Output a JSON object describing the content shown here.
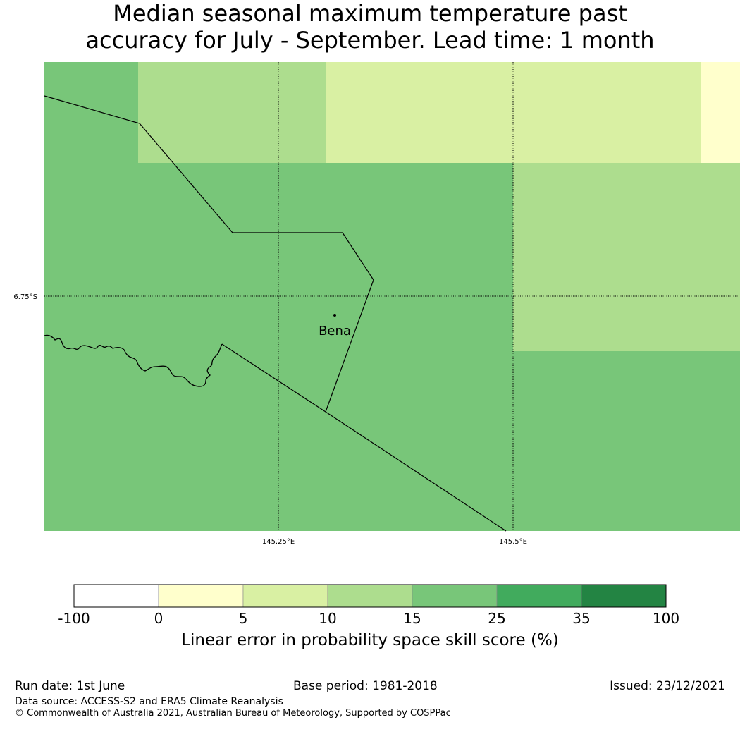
{
  "title": {
    "line1": "Median seasonal maximum temperature past",
    "line2": "accuracy for July - September. Lead time: 1 month"
  },
  "map": {
    "lat_label": "6.75°S",
    "lon_labels": [
      "145.25°E",
      "145.5°E"
    ],
    "place": "Bena"
  },
  "colorbar": {
    "title": "Linear error in probability space skill score (%)",
    "ticks": [
      "-100",
      "0",
      "5",
      "10",
      "15",
      "25",
      "35",
      "100"
    ],
    "colors": [
      "#ffffff",
      "#ffffcc",
      "#d9f0a3",
      "#addd8e",
      "#78c679",
      "#41ab5d",
      "#238443"
    ]
  },
  "footer": {
    "run_date": "Run date: 1st June",
    "base_period": "Base period: 1981-2018",
    "issued": "Issued: 23/12/2021",
    "source": "Data source: ACCESS-S2 and ERA5 Climate Reanalysis",
    "copyright": "© Commonwealth of Australia 2021, Australian Bureau of Meteorology, Supported by COSPPac"
  }
}
